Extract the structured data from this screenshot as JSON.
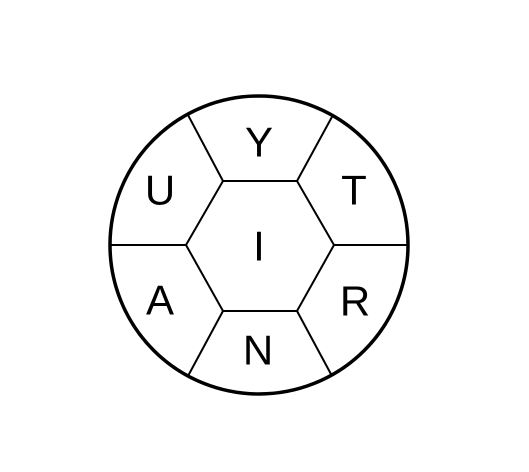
{
  "puzzle": {
    "center_letter": "I",
    "letters": {
      "top": "Y",
      "upper_right": "T",
      "lower_right": "R",
      "bottom": "N",
      "lower_left": "A",
      "upper_left": "U"
    }
  },
  "colors": {
    "stroke": "#000000",
    "background": "#ffffff",
    "text": "#000000"
  }
}
